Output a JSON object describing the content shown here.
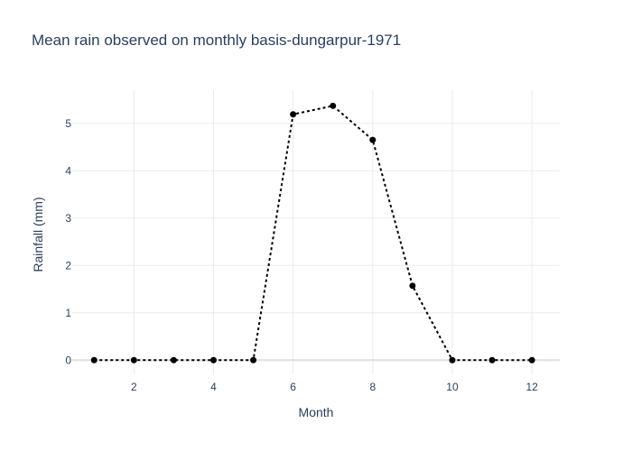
{
  "chart_data": {
    "type": "line",
    "title": "Mean rain observed on monthly basis-dungarpur-1971",
    "xlabel": "Month",
    "ylabel": "Rainfall (mm)",
    "x": [
      1,
      2,
      3,
      4,
      5,
      6,
      7,
      8,
      9,
      10,
      11,
      12
    ],
    "series": [
      {
        "values": [
          0,
          0,
          0,
          0,
          0,
          5.19,
          5.37,
          4.65,
          1.57,
          0,
          0,
          0
        ],
        "color": "#000000",
        "line_style": "dotted",
        "markers": true
      }
    ],
    "xlim": [
      0.45,
      12.7
    ],
    "ylim": [
      -0.3,
      5.7
    ],
    "x_ticks": [
      2,
      4,
      6,
      8,
      10,
      12
    ],
    "y_ticks": [
      0,
      1,
      2,
      3,
      4,
      5
    ],
    "grid": true,
    "legend": "none"
  }
}
